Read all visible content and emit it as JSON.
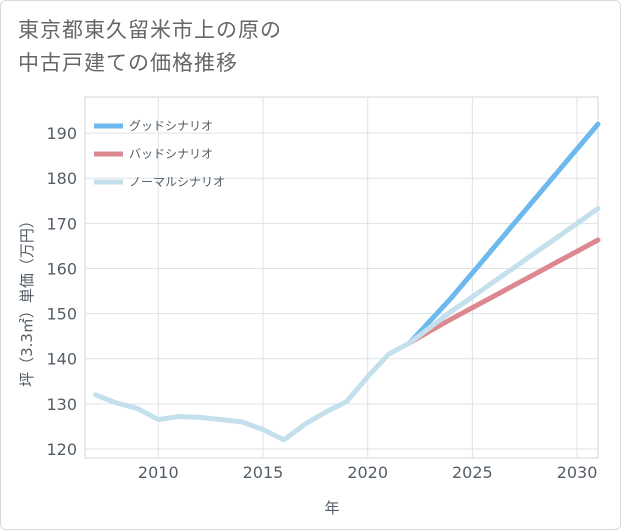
{
  "page": {
    "title_line1": "東京都東久留米市上の原の",
    "title_line2": "中古戸建ての価格推移"
  },
  "chart_data": {
    "type": "line",
    "xlabel": "年",
    "ylabel": "坪（3.3㎡）単価（万円）",
    "xlim": [
      2006.5,
      2031
    ],
    "ylim": [
      118,
      198
    ],
    "x_ticks": [
      2010,
      2015,
      2020,
      2025,
      2030
    ],
    "y_ticks": [
      120,
      130,
      140,
      150,
      160,
      170,
      180,
      190
    ],
    "grid": true,
    "legend_position": "top-left",
    "series": [
      {
        "name": "グッドシナリオ",
        "color": "#6cb9ee",
        "x": [
          2022,
          2023,
          2024,
          2025,
          2026,
          2027,
          2028,
          2029,
          2030,
          2031
        ],
        "values": [
          143.5,
          148.5,
          153.5,
          159.0,
          164.5,
          170.0,
          175.5,
          181.0,
          186.5,
          192.0
        ]
      },
      {
        "name": "バッドシナリオ",
        "color": "#dd8890",
        "x": [
          2022,
          2023,
          2024,
          2025,
          2026,
          2027,
          2028,
          2029,
          2030,
          2031
        ],
        "values": [
          143.5,
          146.2,
          148.8,
          151.3,
          153.8,
          156.3,
          158.8,
          161.3,
          163.8,
          166.3
        ]
      },
      {
        "name": "ノーマルシナリオ",
        "color": "#c4e0ec",
        "x": [
          2007,
          2008,
          2009,
          2010,
          2011,
          2012,
          2013,
          2014,
          2015,
          2016,
          2017,
          2018,
          2019,
          2020,
          2021,
          2022,
          2023,
          2024,
          2025,
          2026,
          2027,
          2028,
          2029,
          2030,
          2031
        ],
        "values": [
          132.0,
          130.2,
          129.0,
          126.5,
          127.2,
          127.0,
          126.5,
          126.0,
          124.3,
          122.0,
          125.5,
          128.2,
          130.5,
          136.0,
          141.0,
          143.5,
          147.0,
          150.5,
          153.7,
          157.0,
          160.2,
          163.5,
          166.7,
          170.0,
          173.3
        ]
      }
    ]
  }
}
